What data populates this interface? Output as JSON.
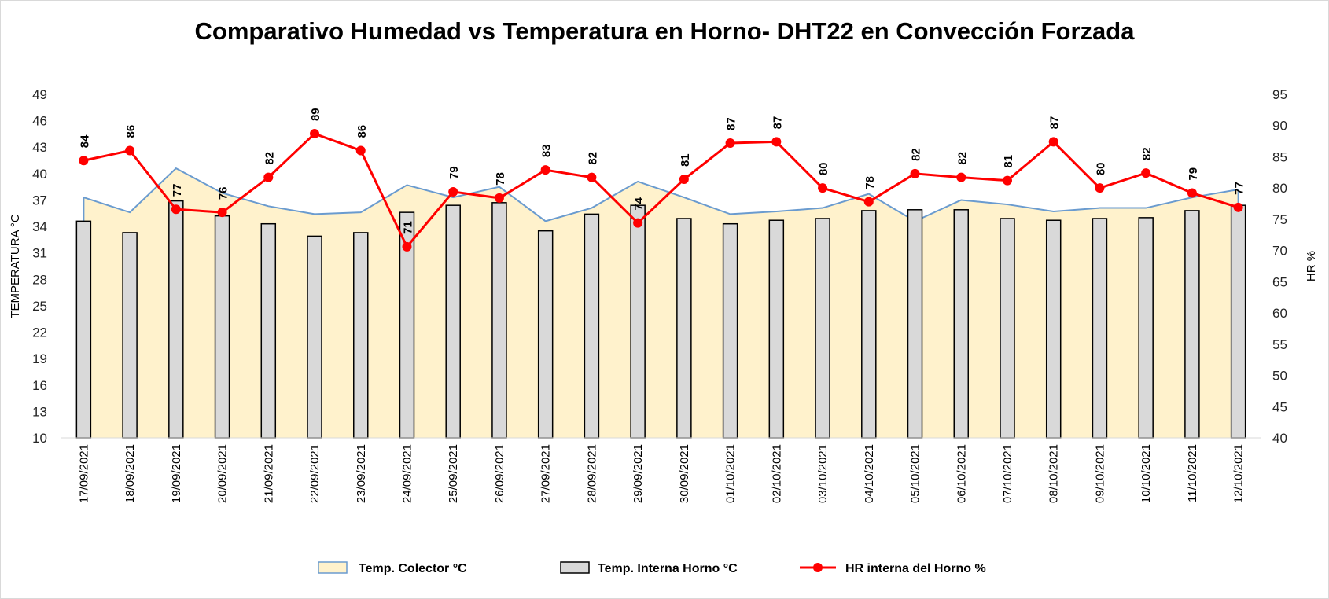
{
  "chart_data": {
    "type": "bar+line+area",
    "title": "Comparativo Humedad vs Temperatura en Horno- DHT22 en Convección Forzada",
    "ylabel_left": "TEMPERATURA °C",
    "ylabel_right": "HR %",
    "ylim_left": [
      10,
      49
    ],
    "yticks_left": [
      10,
      13,
      16,
      19,
      22,
      25,
      28,
      31,
      34,
      37,
      40,
      43,
      46,
      49
    ],
    "ylim_right": [
      40,
      95
    ],
    "yticks_right": [
      40,
      45,
      50,
      55,
      60,
      65,
      70,
      75,
      80,
      85,
      90,
      95
    ],
    "grid": false,
    "legend_position": "bottom",
    "categories": [
      "17/09/2021",
      "18/09/2021",
      "19/09/2021",
      "20/09/2021",
      "21/09/2021",
      "22/09/2021",
      "23/09/2021",
      "24/09/2021",
      "25/09/2021",
      "26/09/2021",
      "27/09/2021",
      "28/09/2021",
      "29/09/2021",
      "30/09/2021",
      "01/10/2021",
      "02/10/2021",
      "03/10/2021",
      "04/10/2021",
      "05/10/2021",
      "06/10/2021",
      "07/10/2021",
      "08/10/2021",
      "09/10/2021",
      "10/10/2021",
      "11/10/2021",
      "12/10/2021"
    ],
    "series": [
      {
        "name": "Temp. Colector °C",
        "type": "area",
        "axis": "left",
        "color": "#6a9bcf",
        "fill": "#fff2cc",
        "values": [
          37.3,
          35.6,
          40.6,
          37.8,
          36.3,
          35.4,
          35.6,
          38.7,
          37.3,
          38.5,
          34.6,
          36.1,
          39.1,
          37.3,
          35.4,
          35.7,
          36.1,
          37.7,
          34.6,
          37.0,
          36.5,
          35.7,
          36.1,
          36.1,
          37.3,
          38.2
        ]
      },
      {
        "name": "Temp. Interna Horno °C",
        "type": "bar",
        "axis": "left",
        "color": "#d9d9d9",
        "border": "#000000",
        "values": [
          34.6,
          33.3,
          36.9,
          35.2,
          34.3,
          32.9,
          33.3,
          35.6,
          36.4,
          36.7,
          33.5,
          35.4,
          36.4,
          34.9,
          34.3,
          34.7,
          34.9,
          35.8,
          35.9,
          35.9,
          34.9,
          34.7,
          34.9,
          35.0,
          35.8,
          36.4
        ]
      },
      {
        "name": "HR interna del Horno %",
        "type": "line",
        "axis": "right",
        "color": "#ff0000",
        "values": [
          84.4,
          86.0,
          76.6,
          76.1,
          81.7,
          88.7,
          86.0,
          70.6,
          79.4,
          78.4,
          82.9,
          81.7,
          74.4,
          81.4,
          87.2,
          87.4,
          80.0,
          77.8,
          82.3,
          81.7,
          81.2,
          87.4,
          80.0,
          82.4,
          79.2,
          76.9
        ],
        "data_labels": [
          "84",
          "86",
          "77",
          "76",
          "82",
          "89",
          "86",
          "71",
          "79",
          "78",
          "83",
          "82",
          "74",
          "81",
          "87",
          "87",
          "80",
          "78",
          "82",
          "82",
          "81",
          "87",
          "80",
          "82",
          "79",
          "77"
        ]
      }
    ]
  }
}
